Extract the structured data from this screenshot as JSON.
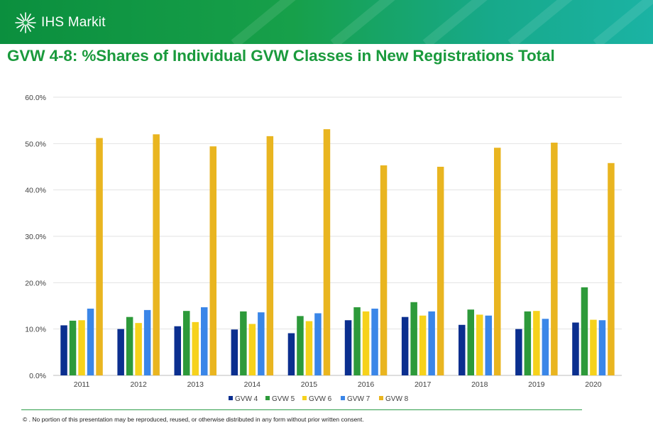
{
  "brand": {
    "logo_text": "IHS Markit",
    "logo_icon": "starburst-icon"
  },
  "slide": {
    "title": "GVW 4-8: %Shares of Individual GVW Classes in New Registrations Total",
    "footer": "© . No portion of this presentation may be reproduced, reused, or otherwise distributed in any form without prior written consent."
  },
  "chart_data": {
    "type": "bar",
    "title": "",
    "xlabel": "",
    "ylabel": "",
    "categories": [
      "2011",
      "2012",
      "2013",
      "2014",
      "2015",
      "2016",
      "2017",
      "2018",
      "2019",
      "2020"
    ],
    "ylim": [
      0,
      60
    ],
    "yticks": [
      0,
      10,
      20,
      30,
      40,
      50,
      60
    ],
    "ytick_labels": [
      "0.0%",
      "10.0%",
      "20.0%",
      "30.0%",
      "40.0%",
      "50.0%",
      "60.0%"
    ],
    "grid": true,
    "legend_position": "bottom",
    "series": [
      {
        "name": "GVW 4",
        "color": "#0b2f8f",
        "values": [
          10.8,
          10.0,
          10.6,
          9.9,
          9.1,
          11.9,
          12.6,
          10.9,
          10.0,
          11.4
        ]
      },
      {
        "name": "GVW 5",
        "color": "#2d9a3a",
        "values": [
          11.8,
          12.6,
          13.9,
          13.8,
          12.8,
          14.7,
          15.8,
          14.2,
          13.8,
          19.0
        ]
      },
      {
        "name": "GVW 6",
        "color": "#f6d21c",
        "values": [
          11.9,
          11.3,
          11.5,
          11.1,
          11.7,
          13.8,
          12.9,
          13.1,
          13.9,
          12.0
        ]
      },
      {
        "name": "GVW 7",
        "color": "#3a86e8",
        "values": [
          14.4,
          14.1,
          14.7,
          13.6,
          13.4,
          14.4,
          13.8,
          12.9,
          12.2,
          11.9
        ]
      },
      {
        "name": "GVW 8",
        "color": "#e9b520",
        "values": [
          51.2,
          52.0,
          49.4,
          51.6,
          53.1,
          45.3,
          45.0,
          49.1,
          50.2,
          45.8
        ]
      }
    ]
  }
}
